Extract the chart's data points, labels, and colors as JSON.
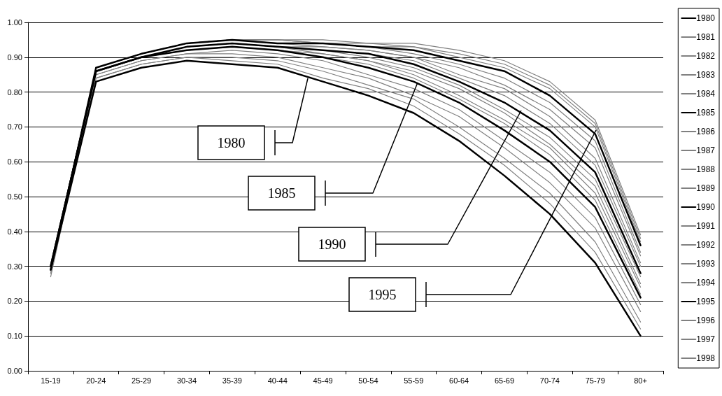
{
  "chart_data": {
    "type": "line",
    "categories": [
      "15-19",
      "20-24",
      "25-29",
      "30-34",
      "35-39",
      "40-44",
      "45-49",
      "50-54",
      "55-59",
      "60-64",
      "65-69",
      "70-74",
      "75-79",
      "80+"
    ],
    "ylim": [
      0,
      1
    ],
    "yticks": [
      {
        "value": 0,
        "label": "0.00"
      },
      {
        "value": 0.1,
        "label": "0.10"
      },
      {
        "value": 0.2,
        "label": "0.20"
      },
      {
        "value": 0.3,
        "label": "0.30"
      },
      {
        "value": 0.4,
        "label": "0.40"
      },
      {
        "value": 0.5,
        "label": "0.50"
      },
      {
        "value": 0.6,
        "label": "0.60"
      },
      {
        "value": 0.7,
        "label": "0.70"
      },
      {
        "value": 0.8,
        "label": "0.80"
      },
      {
        "value": 0.9,
        "label": "0.90"
      },
      {
        "value": 1,
        "label": "1.00"
      }
    ],
    "grid": "y",
    "legend": "right",
    "marker": "none",
    "line_style": "solid",
    "annotations": [
      "1980",
      "1985",
      "1990",
      "1995"
    ],
    "series": [
      {
        "name": "1980",
        "color": "#000000",
        "values": [
          0.29,
          0.83,
          0.87,
          0.89,
          0.88,
          0.87,
          0.83,
          0.79,
          0.74,
          0.66,
          0.56,
          0.45,
          0.31,
          0.1
        ]
      },
      {
        "name": "1981",
        "color": "#808080",
        "values": [
          0.29,
          0.84,
          0.88,
          0.9,
          0.89,
          0.88,
          0.84,
          0.81,
          0.76,
          0.68,
          0.59,
          0.48,
          0.34,
          0.12
        ]
      },
      {
        "name": "1982",
        "color": "#808080",
        "values": [
          0.29,
          0.84,
          0.88,
          0.9,
          0.9,
          0.89,
          0.86,
          0.82,
          0.78,
          0.7,
          0.61,
          0.51,
          0.37,
          0.14
        ]
      },
      {
        "name": "1983",
        "color": "#808080",
        "values": [
          0.3,
          0.85,
          0.89,
          0.91,
          0.91,
          0.9,
          0.87,
          0.84,
          0.79,
          0.73,
          0.64,
          0.54,
          0.41,
          0.17
        ]
      },
      {
        "name": "1984",
        "color": "#808080",
        "values": [
          0.3,
          0.85,
          0.89,
          0.91,
          0.92,
          0.91,
          0.89,
          0.85,
          0.81,
          0.75,
          0.66,
          0.57,
          0.44,
          0.19
        ]
      },
      {
        "name": "1985",
        "color": "#000000",
        "values": [
          0.3,
          0.86,
          0.9,
          0.92,
          0.93,
          0.92,
          0.9,
          0.87,
          0.83,
          0.77,
          0.69,
          0.6,
          0.47,
          0.21
        ]
      },
      {
        "name": "1986",
        "color": "#808080",
        "values": [
          0.3,
          0.86,
          0.9,
          0.92,
          0.93,
          0.92,
          0.9,
          0.88,
          0.84,
          0.78,
          0.71,
          0.62,
          0.49,
          0.22
        ]
      },
      {
        "name": "1987",
        "color": "#808080",
        "values": [
          0.3,
          0.86,
          0.9,
          0.92,
          0.93,
          0.92,
          0.91,
          0.89,
          0.85,
          0.79,
          0.72,
          0.64,
          0.51,
          0.24
        ]
      },
      {
        "name": "1988",
        "color": "#808080",
        "values": [
          0.3,
          0.86,
          0.9,
          0.93,
          0.94,
          0.93,
          0.91,
          0.89,
          0.86,
          0.81,
          0.74,
          0.65,
          0.53,
          0.25
        ]
      },
      {
        "name": "1989",
        "color": "#808080",
        "values": [
          0.3,
          0.86,
          0.9,
          0.93,
          0.94,
          0.93,
          0.92,
          0.9,
          0.87,
          0.82,
          0.75,
          0.67,
          0.55,
          0.27
        ]
      },
      {
        "name": "1990",
        "color": "#000000",
        "values": [
          0.3,
          0.86,
          0.9,
          0.93,
          0.94,
          0.93,
          0.92,
          0.91,
          0.88,
          0.83,
          0.77,
          0.69,
          0.57,
          0.28
        ]
      },
      {
        "name": "1991",
        "color": "#808080",
        "values": [
          0.3,
          0.86,
          0.9,
          0.93,
          0.94,
          0.93,
          0.92,
          0.91,
          0.89,
          0.84,
          0.79,
          0.71,
          0.59,
          0.3
        ]
      },
      {
        "name": "1992",
        "color": "#808080",
        "values": [
          0.3,
          0.86,
          0.9,
          0.93,
          0.94,
          0.93,
          0.93,
          0.92,
          0.9,
          0.85,
          0.81,
          0.73,
          0.61,
          0.31
        ]
      },
      {
        "name": "1993",
        "color": "#808080",
        "values": [
          0.29,
          0.87,
          0.91,
          0.94,
          0.95,
          0.94,
          0.93,
          0.92,
          0.9,
          0.87,
          0.82,
          0.75,
          0.64,
          0.33
        ]
      },
      {
        "name": "1994",
        "color": "#808080",
        "values": [
          0.29,
          0.87,
          0.91,
          0.94,
          0.95,
          0.94,
          0.94,
          0.93,
          0.91,
          0.88,
          0.84,
          0.77,
          0.66,
          0.34
        ]
      },
      {
        "name": "1995",
        "color": "#000000",
        "values": [
          0.29,
          0.87,
          0.91,
          0.94,
          0.95,
          0.94,
          0.94,
          0.93,
          0.92,
          0.89,
          0.86,
          0.79,
          0.68,
          0.36
        ]
      },
      {
        "name": "1996",
        "color": "#808080",
        "values": [
          0.28,
          0.87,
          0.91,
          0.94,
          0.95,
          0.95,
          0.94,
          0.93,
          0.93,
          0.9,
          0.87,
          0.81,
          0.7,
          0.37
        ]
      },
      {
        "name": "1997",
        "color": "#808080",
        "values": [
          0.28,
          0.87,
          0.91,
          0.94,
          0.95,
          0.95,
          0.94,
          0.94,
          0.93,
          0.91,
          0.88,
          0.82,
          0.71,
          0.38
        ]
      },
      {
        "name": "1998",
        "color": "#808080",
        "values": [
          0.27,
          0.87,
          0.91,
          0.94,
          0.95,
          0.95,
          0.95,
          0.94,
          0.94,
          0.92,
          0.89,
          0.83,
          0.72,
          0.39
        ]
      }
    ]
  }
}
